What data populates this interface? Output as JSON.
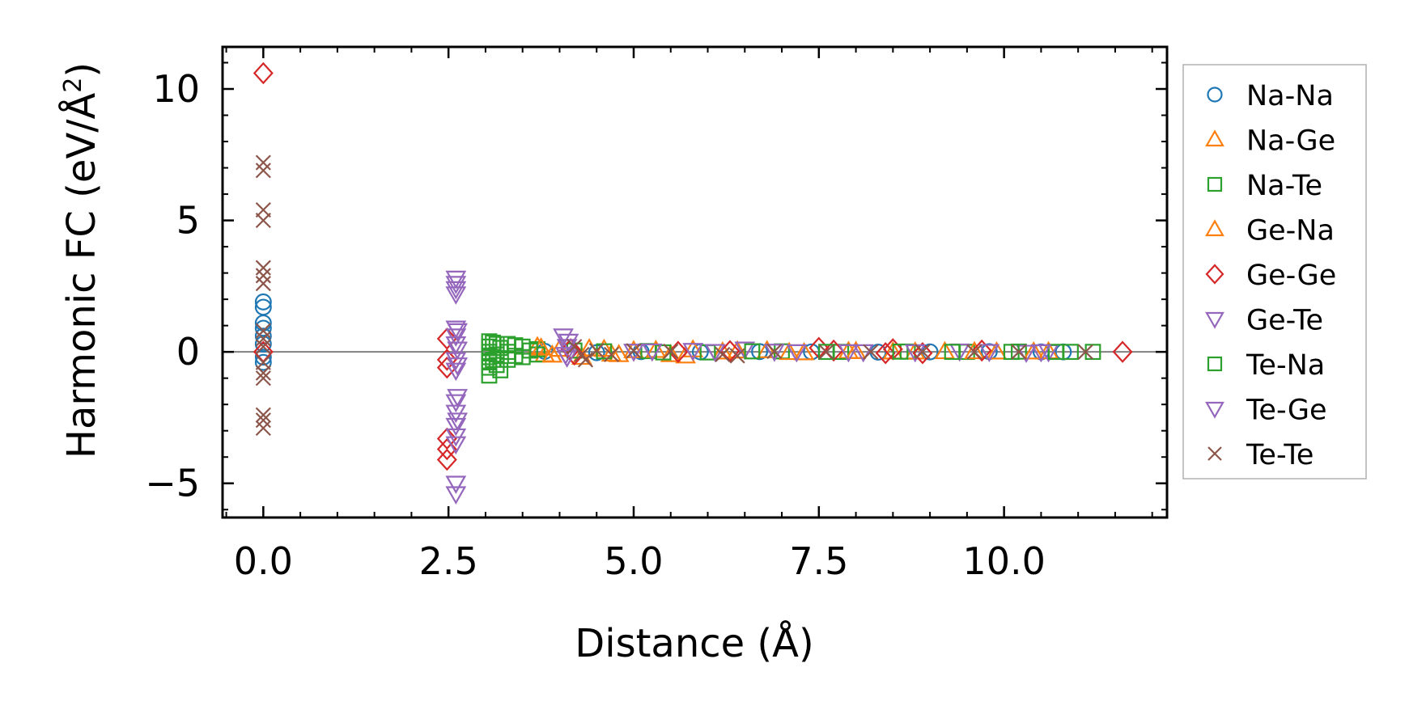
{
  "chart_data": {
    "type": "scatter",
    "xlabel": "Distance (Å)",
    "ylabel": "Harmonic FC (eV/Å²)",
    "ylabel_parts": {
      "pre": "Harmonic FC (eV/Å",
      "sup": "2",
      "post": ")"
    },
    "xlim": [
      -0.55,
      12.2
    ],
    "ylim": [
      -6.3,
      11.6
    ],
    "xticks": [
      0.0,
      2.5,
      5.0,
      7.5,
      10.0
    ],
    "xtick_labels": [
      "0.0",
      "2.5",
      "5.0",
      "7.5",
      "10.0"
    ],
    "yticks": [
      -5,
      0,
      5,
      10
    ],
    "ytick_labels": [
      "−5",
      "0",
      "5",
      "10"
    ],
    "zero_line": true,
    "grid": false,
    "legend_position": "right, outside plot",
    "series": [
      {
        "name": "Na-Na",
        "marker": "circle",
        "color": "#1f77b4",
        "points": [
          [
            0,
            1.9
          ],
          [
            0,
            1.7
          ],
          [
            0,
            1.1
          ],
          [
            0,
            0.9
          ],
          [
            0,
            0.6
          ],
          [
            0,
            0.3
          ],
          [
            0,
            -0.2
          ],
          [
            0,
            -0.4
          ],
          [
            3.8,
            0.02
          ],
          [
            4.5,
            -0.03
          ],
          [
            5.1,
            0.01
          ],
          [
            5.9,
            0.0
          ],
          [
            6.7,
            0.01
          ],
          [
            7.4,
            0.0
          ],
          [
            8.3,
            -0.01
          ],
          [
            9.0,
            0.0
          ],
          [
            9.8,
            0.01
          ],
          [
            10.5,
            0.0
          ],
          [
            10.8,
            0.0
          ]
        ]
      },
      {
        "name": "Na-Ge",
        "marker": "triangle-up",
        "color": "#ff7f0e",
        "points": [
          [
            3.7,
            0.2
          ],
          [
            3.8,
            -0.1
          ],
          [
            4.0,
            0.1
          ],
          [
            4.3,
            -0.2
          ],
          [
            4.6,
            0.1
          ],
          [
            4.8,
            -0.1
          ],
          [
            5.0,
            0.05
          ],
          [
            5.5,
            -0.1
          ],
          [
            5.8,
            0.08
          ],
          [
            6.2,
            0.0
          ],
          [
            6.8,
            0.05
          ],
          [
            7.3,
            -0.03
          ],
          [
            7.9,
            0.02
          ],
          [
            8.5,
            0.0
          ],
          [
            9.2,
            0.01
          ],
          [
            9.9,
            0.0
          ],
          [
            10.6,
            0.01
          ]
        ]
      },
      {
        "name": "Na-Te",
        "marker": "square",
        "color": "#2ca02c",
        "points": [
          [
            3.05,
            0.4
          ],
          [
            3.05,
            0.2
          ],
          [
            3.05,
            0.0
          ],
          [
            3.05,
            -0.2
          ],
          [
            3.05,
            -0.4
          ],
          [
            3.05,
            -0.6
          ],
          [
            3.05,
            -0.9
          ],
          [
            3.15,
            0.3
          ],
          [
            3.15,
            -0.1
          ],
          [
            3.15,
            -0.5
          ],
          [
            3.3,
            0.3
          ],
          [
            3.3,
            0.0
          ],
          [
            3.3,
            -0.3
          ],
          [
            3.5,
            0.2
          ],
          [
            3.5,
            -0.2
          ],
          [
            3.7,
            0.1
          ],
          [
            3.7,
            -0.1
          ],
          [
            4.2,
            0.05
          ],
          [
            5.2,
            0.03
          ],
          [
            6.0,
            -0.02
          ],
          [
            7.0,
            0.02
          ],
          [
            7.8,
            0.0
          ],
          [
            8.7,
            0.01
          ],
          [
            9.5,
            0.0
          ],
          [
            10.2,
            0.01
          ],
          [
            10.9,
            0.0
          ],
          [
            11.2,
            0.0
          ]
        ]
      },
      {
        "name": "Ge-Na",
        "marker": "triangle-up",
        "color": "#ff7f0e",
        "points": [
          [
            3.75,
            0.15
          ],
          [
            3.9,
            -0.12
          ],
          [
            4.4,
            0.12
          ],
          [
            4.7,
            -0.08
          ],
          [
            5.3,
            0.06
          ],
          [
            5.7,
            -0.15
          ],
          [
            6.4,
            0.04
          ],
          [
            7.1,
            -0.02
          ],
          [
            8.0,
            0.02
          ],
          [
            8.8,
            0.0
          ],
          [
            9.6,
            0.01
          ],
          [
            10.4,
            0.0
          ]
        ]
      },
      {
        "name": "Ge-Ge",
        "marker": "diamond",
        "color": "#d62728",
        "points": [
          [
            0,
            10.6
          ],
          [
            0,
            0.0
          ],
          [
            2.48,
            0.5
          ],
          [
            2.48,
            -0.3
          ],
          [
            2.48,
            -0.6
          ],
          [
            2.48,
            -3.3
          ],
          [
            2.48,
            -3.7
          ],
          [
            2.48,
            -4.1
          ],
          [
            4.15,
            0.1
          ],
          [
            4.2,
            -0.1
          ],
          [
            5.6,
            0.0
          ],
          [
            6.3,
            0.03
          ],
          [
            7.5,
            0.15
          ],
          [
            7.7,
            0.05
          ],
          [
            8.4,
            -0.05
          ],
          [
            8.5,
            0.1
          ],
          [
            8.9,
            -0.05
          ],
          [
            9.7,
            0.05
          ],
          [
            11.6,
            0.0
          ]
        ]
      },
      {
        "name": "Ge-Te",
        "marker": "triangle-down",
        "color": "#9467bd",
        "points": [
          [
            2.6,
            2.8
          ],
          [
            2.6,
            2.6
          ],
          [
            2.6,
            2.4
          ],
          [
            2.6,
            2.2
          ],
          [
            2.6,
            0.9
          ],
          [
            2.6,
            0.6
          ],
          [
            2.6,
            0.3
          ],
          [
            2.6,
            -0.3
          ],
          [
            2.6,
            -0.7
          ],
          [
            2.6,
            -1.9
          ],
          [
            2.6,
            -2.3
          ],
          [
            2.6,
            -2.8
          ],
          [
            2.6,
            -3.2
          ],
          [
            2.6,
            -3.5
          ],
          [
            2.6,
            -5.0
          ],
          [
            2.6,
            -5.4
          ],
          [
            4.05,
            0.6
          ],
          [
            4.1,
            0.2
          ],
          [
            4.1,
            -0.2
          ],
          [
            5.0,
            0.02
          ],
          [
            5.8,
            0.05
          ],
          [
            6.5,
            0.1
          ],
          [
            7.2,
            0.0
          ],
          [
            8.1,
            0.0
          ],
          [
            9.4,
            0.03
          ],
          [
            10.3,
            -0.02
          ],
          [
            10.6,
            0.0
          ]
        ]
      },
      {
        "name": "Te-Na",
        "marker": "square",
        "color": "#2ca02c",
        "points": [
          [
            3.1,
            0.35
          ],
          [
            3.1,
            -0.3
          ],
          [
            3.2,
            0.15
          ],
          [
            3.2,
            -0.7
          ],
          [
            3.4,
            0.25
          ],
          [
            3.4,
            -0.15
          ],
          [
            3.6,
            0.05
          ],
          [
            4.6,
            0.02
          ],
          [
            5.4,
            -0.02
          ],
          [
            6.6,
            0.02
          ],
          [
            7.6,
            0.0
          ],
          [
            8.6,
            0.01
          ],
          [
            9.3,
            0.0
          ],
          [
            10.1,
            0.0
          ],
          [
            10.7,
            0.0
          ]
        ]
      },
      {
        "name": "Te-Ge",
        "marker": "triangle-down",
        "color": "#9467bd",
        "points": [
          [
            2.62,
            0.8
          ],
          [
            2.62,
            0.1
          ],
          [
            2.62,
            -0.5
          ],
          [
            2.62,
            -1.7
          ],
          [
            2.62,
            -2.6
          ],
          [
            4.12,
            0.4
          ],
          [
            4.08,
            -0.1
          ],
          [
            5.25,
            0.03
          ],
          [
            6.1,
            0.01
          ],
          [
            6.9,
            0.02
          ],
          [
            7.9,
            0.0
          ],
          [
            8.8,
            0.0
          ],
          [
            9.8,
            0.01
          ],
          [
            10.5,
            0.0
          ]
        ]
      },
      {
        "name": "Te-Te",
        "marker": "x",
        "color": "#8c564b",
        "points": [
          [
            0,
            7.2
          ],
          [
            0,
            6.9
          ],
          [
            0,
            5.4
          ],
          [
            0,
            5.0
          ],
          [
            0,
            3.2
          ],
          [
            0,
            2.9
          ],
          [
            0,
            2.6
          ],
          [
            0,
            0.8
          ],
          [
            0,
            0.5
          ],
          [
            0,
            0.2
          ],
          [
            0,
            -0.4
          ],
          [
            0,
            -0.8
          ],
          [
            0,
            -1.0
          ],
          [
            0,
            -2.4
          ],
          [
            0,
            -2.6
          ],
          [
            0,
            -2.9
          ],
          [
            4.2,
            0.2
          ],
          [
            4.3,
            -0.1
          ],
          [
            4.35,
            -0.3
          ],
          [
            4.5,
            0.05
          ],
          [
            4.7,
            -0.1
          ],
          [
            5.0,
            0.04
          ],
          [
            5.5,
            0.02
          ],
          [
            6.2,
            -0.1
          ],
          [
            6.4,
            -0.15
          ],
          [
            6.9,
            0.02
          ],
          [
            7.6,
            0.0
          ],
          [
            8.2,
            0.0
          ],
          [
            8.9,
            0.01
          ],
          [
            9.6,
            0.0
          ],
          [
            10.2,
            0.0
          ],
          [
            11.1,
            0.0
          ]
        ]
      }
    ]
  }
}
